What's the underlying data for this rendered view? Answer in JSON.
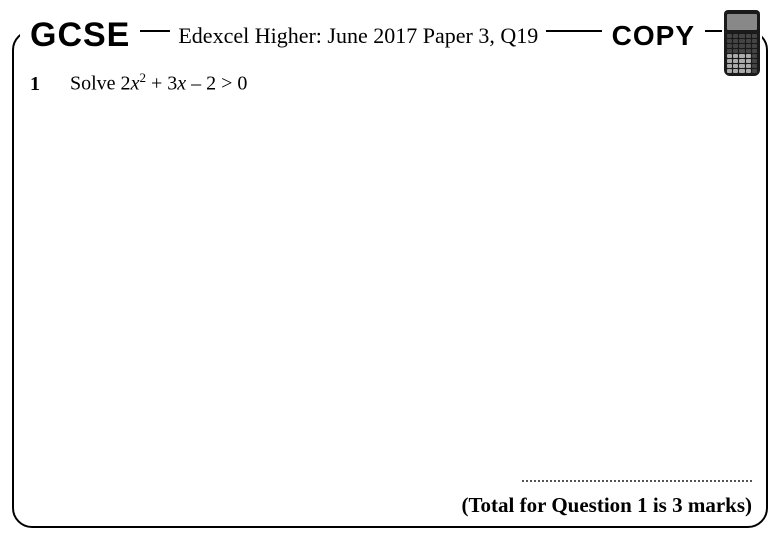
{
  "header": {
    "gcse": "GCSE",
    "title": "Edexcel Higher: June 2017 Paper 3, Q19",
    "copy": "COPY"
  },
  "question": {
    "number": "1",
    "prefix": "Solve  2",
    "var1": "x",
    "exp": "2",
    "mid": " + 3",
    "var2": "x",
    "suffix": "  – 2 > 0"
  },
  "footer": {
    "total": "(Total for Question 1 is 3 marks)"
  }
}
